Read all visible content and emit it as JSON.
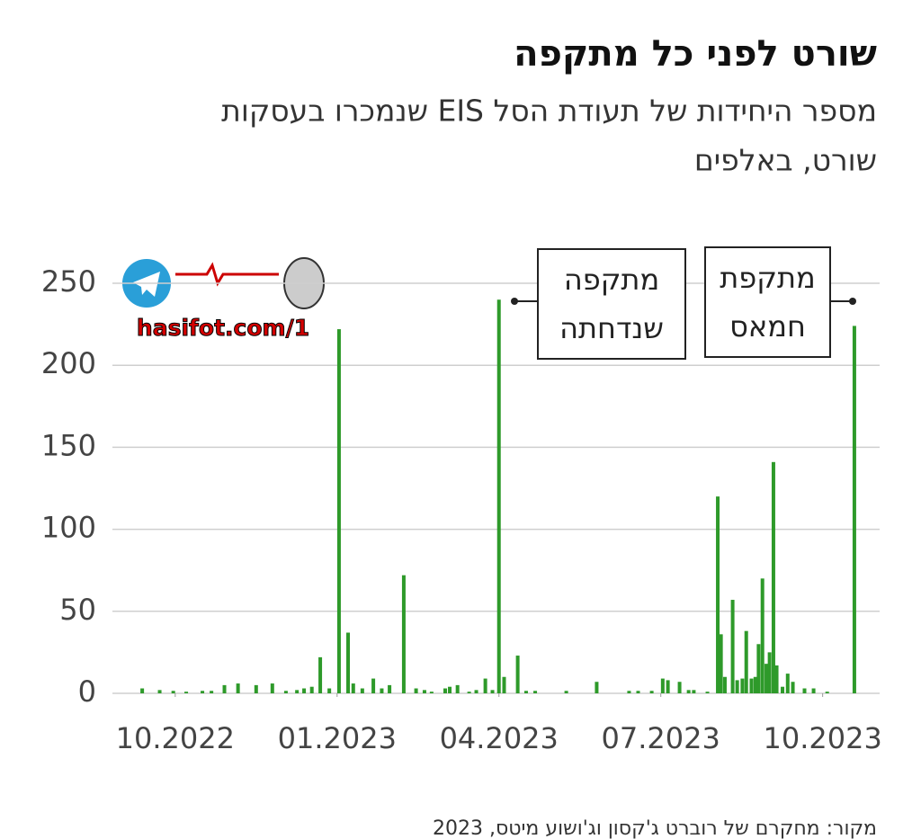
{
  "chart_data": {
    "type": "bar",
    "title": "שורט לפני כל מתקפה",
    "subtitle": [
      "מספר היחידות של תעודת הסל EIS שנמכרו בעסקות",
      "שורט, באלפים"
    ],
    "annotations": [
      [
        "מתקפה",
        "שנדחתה"
      ],
      [
        "מתקפת",
        "חמאס"
      ]
    ],
    "source": "מקור: מחקרם של רוברט ג'קסון וג'ושוע מיטס, 2023",
    "watermark": "hasifot.com/1",
    "color": "#2e9a2a",
    "grid": true,
    "xlim": [
      2022.653,
      2023.838
    ],
    "xticks": [
      {
        "value": 2022.75,
        "label": "10.2022"
      },
      {
        "value": 2023.0,
        "label": "01.2023"
      },
      {
        "value": 2023.25,
        "label": "04.2023"
      },
      {
        "value": 2023.5,
        "label": "07.2023"
      },
      {
        "value": 2023.75,
        "label": "10.2023"
      }
    ],
    "ylim": [
      0,
      250
    ],
    "yticks": [
      0,
      50,
      100,
      150,
      200,
      250
    ],
    "x": [
      2022.699,
      2022.726,
      2022.747,
      2022.767,
      2022.792,
      2022.806,
      2022.826,
      2022.847,
      2022.875,
      2022.9,
      2022.921,
      2022.938,
      2022.949,
      2022.961,
      2022.974,
      2022.988,
      2023.003,
      2023.017,
      2023.025,
      2023.039,
      2023.056,
      2023.069,
      2023.081,
      2023.103,
      2023.122,
      2023.135,
      2023.146,
      2023.167,
      2023.174,
      2023.186,
      2023.204,
      2023.215,
      2023.229,
      2023.24,
      2023.25,
      2023.258,
      2023.279,
      2023.292,
      2023.306,
      2023.354,
      2023.401,
      2023.451,
      2023.465,
      2023.486,
      2023.503,
      2023.511,
      2023.529,
      2023.543,
      2023.551,
      2023.572,
      2023.588,
      2023.593,
      2023.599,
      2023.611,
      2023.618,
      2023.626,
      2023.632,
      2023.64,
      2023.646,
      2023.651,
      2023.657,
      2023.663,
      2023.668,
      2023.674,
      2023.679,
      2023.688,
      2023.696,
      2023.704,
      2023.722,
      2023.736,
      2023.757,
      2023.799
    ],
    "values": [
      3,
      2,
      1.5,
      1,
      1.5,
      1.5,
      5,
      6,
      5,
      6,
      1.5,
      2,
      3,
      4,
      22,
      3,
      222,
      37,
      6,
      3,
      9,
      3,
      5,
      72,
      3,
      2,
      1,
      3,
      4,
      5,
      1,
      2,
      9,
      2,
      240,
      10,
      23,
      1.5,
      1.5,
      1.5,
      7,
      1.5,
      1.5,
      1.5,
      9,
      8,
      7,
      2,
      2,
      1,
      120,
      36,
      10,
      57,
      8,
      9,
      38,
      9,
      10,
      30,
      70,
      18,
      25,
      141,
      17,
      4,
      12,
      7,
      3,
      3,
      1,
      224
    ]
  }
}
